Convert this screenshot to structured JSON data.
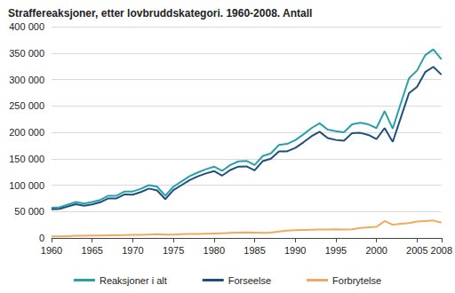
{
  "chart_data": {
    "type": "line",
    "title": "Straffereaksjoner, etter lovbruddskategori. 1960-2008. Antall",
    "x": [
      1960,
      1961,
      1962,
      1963,
      1964,
      1965,
      1966,
      1967,
      1968,
      1969,
      1970,
      1971,
      1972,
      1973,
      1974,
      1975,
      1976,
      1977,
      1978,
      1979,
      1980,
      1981,
      1982,
      1983,
      1984,
      1985,
      1986,
      1987,
      1988,
      1989,
      1990,
      1991,
      1992,
      1993,
      1994,
      1995,
      1996,
      1997,
      1998,
      1999,
      2000,
      2001,
      2002,
      2003,
      2004,
      2005,
      2006,
      2007,
      2008
    ],
    "series": [
      {
        "name": "Reaksjoner i alt",
        "color": "#2a9fa8",
        "values": [
          57000,
          58000,
          63000,
          68000,
          65000,
          68000,
          72000,
          80000,
          80000,
          88000,
          88000,
          93000,
          100000,
          97000,
          80000,
          97000,
          107000,
          117000,
          124000,
          130000,
          135000,
          127000,
          138000,
          145000,
          146000,
          138000,
          155000,
          160000,
          176000,
          178000,
          185000,
          196000,
          208000,
          217000,
          205000,
          202000,
          200000,
          215000,
          218000,
          215000,
          208000,
          240000,
          207000,
          255000,
          302000,
          317000,
          346000,
          357000,
          338000
        ]
      },
      {
        "name": "Forseelse",
        "color": "#1c4f7c",
        "values": [
          54000,
          55000,
          59500,
          64000,
          61000,
          63500,
          67500,
          75000,
          75000,
          82500,
          82000,
          87000,
          93500,
          90000,
          73500,
          90500,
          100000,
          109500,
          116500,
          122000,
          126500,
          118000,
          128500,
          135000,
          135500,
          128000,
          145500,
          150000,
          164000,
          164000,
          170500,
          181000,
          192500,
          201000,
          189000,
          185500,
          184000,
          198500,
          199000,
          195000,
          187000,
          208000,
          182000,
          228000,
          274000,
          286000,
          314000,
          324000,
          309000
        ]
      },
      {
        "name": "Forbrytelse",
        "color": "#f2a85e",
        "values": [
          3000,
          3000,
          3500,
          4000,
          4000,
          4500,
          4500,
          5000,
          5000,
          5500,
          6000,
          6000,
          6500,
          7000,
          6500,
          6500,
          7000,
          7500,
          7500,
          8000,
          8500,
          9000,
          9500,
          10000,
          10500,
          10000,
          9500,
          10000,
          12000,
          14000,
          14500,
          15000,
          15500,
          16000,
          16000,
          16500,
          16000,
          16500,
          19000,
          20000,
          21000,
          32000,
          25000,
          27000,
          28000,
          31000,
          32000,
          33000,
          29000
        ]
      }
    ],
    "xlim": [
      1960,
      2008
    ],
    "xticks": [
      1960,
      1965,
      1970,
      1975,
      1980,
      1985,
      1990,
      1995,
      2000,
      2005,
      2008
    ],
    "ylim": [
      0,
      400000
    ],
    "yticks": [
      0,
      {
        "value": 50000,
        "label": "50 000"
      },
      {
        "value": 100000,
        "label": "100 000"
      },
      {
        "value": 150000,
        "label": "150 000"
      },
      {
        "value": 200000,
        "label": "200 000"
      },
      {
        "value": 250000,
        "label": "250 000"
      },
      {
        "value": 300000,
        "label": "300 000"
      },
      {
        "value": 350000,
        "label": "350 000"
      },
      {
        "value": 400000,
        "label": "400 000"
      }
    ],
    "grid": true,
    "legend": "bottom"
  }
}
